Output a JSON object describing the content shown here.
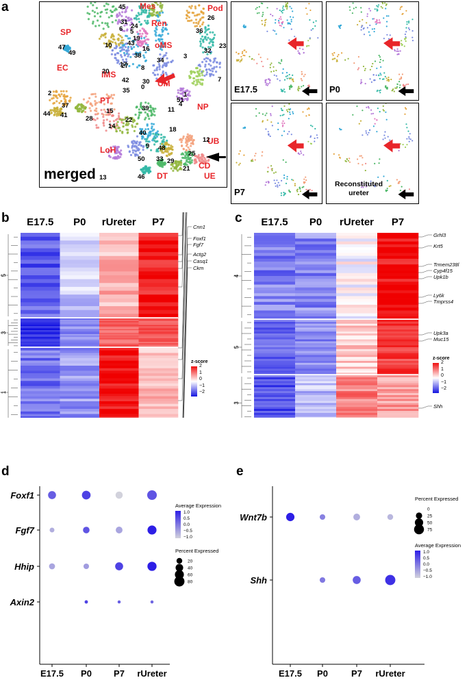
{
  "panels": {
    "a": "a",
    "b": "b",
    "c": "c",
    "d": "d",
    "e": "e"
  },
  "panel_a": {
    "merged_label": "merged",
    "sub_labels": [
      "E17.5",
      "P0",
      "P7",
      "Reconstituted ureter"
    ],
    "cluster_names": [
      "Mes",
      "Pod",
      "Ren",
      "SP",
      "oMS",
      "iMS",
      "UM",
      "EC",
      "PT",
      "NP",
      "UB",
      "CD",
      "LoH",
      "DT",
      "UE"
    ],
    "cluster_numbers": [
      "45",
      "31",
      "24",
      "26",
      "36",
      "6",
      "5",
      "19",
      "43",
      "16",
      "23",
      "32",
      "10",
      "17",
      "38",
      "3",
      "34",
      "47",
      "49",
      "8",
      "20",
      "27",
      "30",
      "7",
      "42",
      "35",
      "0",
      "2",
      "37",
      "51",
      "4",
      "1",
      "44",
      "41",
      "28",
      "15",
      "39",
      "11",
      "14",
      "22",
      "40",
      "18",
      "12",
      "9",
      "48",
      "25",
      "50",
      "33",
      "29",
      "21",
      "46",
      "13"
    ]
  },
  "panel_b": {
    "columns": [
      "E17.5",
      "P0",
      "rUreter",
      "P7"
    ],
    "row_groups": [
      "5",
      "3",
      "1",
      "2",
      "4"
    ],
    "genes": [
      "Tnnt2",
      "Pcp4l1",
      "Hmcn2",
      "Myh11",
      "Tagln",
      "Myocd",
      "Bank1",
      "Hhip",
      "Acta2",
      "Cnn1",
      "Foxf1",
      "Fgf7",
      "Actg2",
      "Casq1",
      "Ckm"
    ],
    "legend_title": "z-score",
    "legend_ticks": [
      "2",
      "1",
      "0",
      "−1",
      "−2"
    ]
  },
  "panel_c": {
    "columns": [
      "E17.5",
      "P0",
      "rUreter",
      "P7"
    ],
    "row_groups": [
      "4",
      "5",
      "3",
      "2",
      "1"
    ],
    "genes": [
      "Grhl3",
      "Krt5",
      "Trmem238l",
      "Cyp4f15",
      "Upk1b",
      "Ly6k",
      "Tmprss4",
      "Upk3a",
      "Muc15",
      "Shh",
      "Cd200r4",
      "Krt14"
    ],
    "legend_title": "z-score",
    "legend_ticks": [
      "2",
      "1",
      "0",
      "−1",
      "−2"
    ]
  },
  "panel_d": {
    "genes": [
      "Foxf1",
      "Fgf7",
      "Hhip",
      "Axin2"
    ],
    "samples": [
      "E17.5",
      "P0",
      "P7",
      "rUreter"
    ],
    "avg_title": "Average Expression",
    "avg_ticks": [
      "1.0",
      "0.5",
      "0.0",
      "−0.5",
      "−1.0"
    ],
    "pct_title": "Percent Expressed",
    "pct_ticks": [
      "20",
      "40",
      "60",
      "80"
    ],
    "dots": [
      {
        "gene": "Foxf1",
        "sample": "E17.5",
        "pct": 45,
        "avg": 0.3
      },
      {
        "gene": "Foxf1",
        "sample": "P0",
        "pct": 55,
        "avg": 0.6
      },
      {
        "gene": "Foxf1",
        "sample": "P7",
        "pct": 35,
        "avg": -1.0
      },
      {
        "gene": "Foxf1",
        "sample": "rUreter",
        "pct": 70,
        "avg": 0.4
      },
      {
        "gene": "Fgf7",
        "sample": "E17.5",
        "pct": 12,
        "avg": -0.6
      },
      {
        "gene": "Fgf7",
        "sample": "P0",
        "pct": 28,
        "avg": 0.4
      },
      {
        "gene": "Fgf7",
        "sample": "P7",
        "pct": 30,
        "avg": -0.5
      },
      {
        "gene": "Fgf7",
        "sample": "rUreter",
        "pct": 60,
        "avg": 1.0
      },
      {
        "gene": "Hhip",
        "sample": "E17.5",
        "pct": 22,
        "avg": -0.5
      },
      {
        "gene": "Hhip",
        "sample": "P0",
        "pct": 18,
        "avg": -0.4
      },
      {
        "gene": "Hhip",
        "sample": "P7",
        "pct": 45,
        "avg": 0.6
      },
      {
        "gene": "Hhip",
        "sample": "rUreter",
        "pct": 62,
        "avg": 1.0
      },
      {
        "gene": "Axin2",
        "sample": "E17.5",
        "pct": 0,
        "avg": 0
      },
      {
        "gene": "Axin2",
        "sample": "P0",
        "pct": 4,
        "avg": 0.6
      },
      {
        "gene": "Axin2",
        "sample": "P7",
        "pct": 3,
        "avg": 0.3
      },
      {
        "gene": "Axin2",
        "sample": "rUreter",
        "pct": 3,
        "avg": 0.2
      }
    ]
  },
  "panel_e": {
    "genes": [
      "Wnt7b",
      "Shh"
    ],
    "samples": [
      "E17.5",
      "P0",
      "P7",
      "rUreter"
    ],
    "pct_title": "Percent Expressed",
    "pct_ticks": [
      "0",
      "25",
      "50",
      "75"
    ],
    "avg_title": "Average Expression",
    "avg_ticks": [
      "1.0",
      "0.5",
      "0.0",
      "−0.5",
      "−1.0"
    ],
    "dots": [
      {
        "gene": "Wnt7b",
        "sample": "E17.5",
        "pct": 50,
        "avg": 1.0
      },
      {
        "gene": "Wnt7b",
        "sample": "P0",
        "pct": 18,
        "avg": -0.1
      },
      {
        "gene": "Wnt7b",
        "sample": "P7",
        "pct": 30,
        "avg": -0.6
      },
      {
        "gene": "Wnt7b",
        "sample": "rUreter",
        "pct": 20,
        "avg": -0.7
      },
      {
        "gene": "Shh",
        "sample": "E17.5",
        "pct": 0,
        "avg": 0
      },
      {
        "gene": "Shh",
        "sample": "P0",
        "pct": 18,
        "avg": 0.0
      },
      {
        "gene": "Shh",
        "sample": "P7",
        "pct": 45,
        "avg": 0.3
      },
      {
        "gene": "Shh",
        "sample": "rUreter",
        "pct": 80,
        "avg": 0.8
      }
    ]
  },
  "colors": {
    "red_label": "#e8262a",
    "dot_high": "#2d1ee6",
    "dot_low": "#cfcfdc",
    "heat_high": "#f01010",
    "heat_low": "#1414e0"
  }
}
